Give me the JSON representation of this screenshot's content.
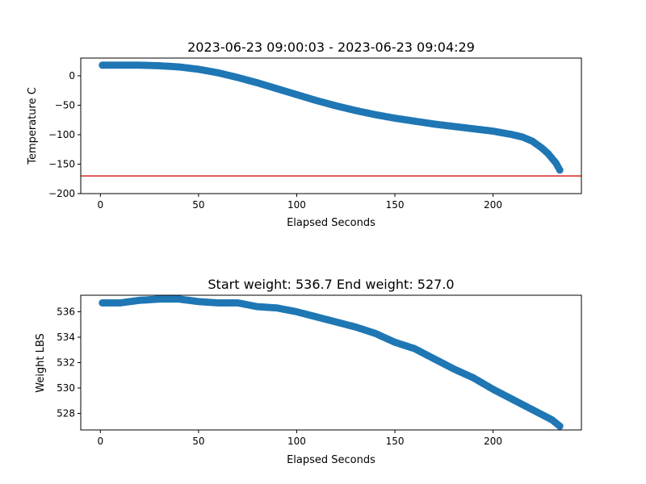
{
  "chart_data": [
    {
      "type": "scatter",
      "title": "2023-06-23 09:00:03 - 2023-06-23 09:04:29",
      "xlabel": "Elapsed Seconds",
      "ylabel": "Temperature C",
      "xlim": [
        -10,
        245
      ],
      "ylim": [
        -200,
        30
      ],
      "xticks": [
        0,
        50,
        100,
        150,
        200
      ],
      "yticks": [
        -200,
        -150,
        -100,
        -50,
        0
      ],
      "marker_color": "#1f77b4",
      "grid": false,
      "reference_line": {
        "y": -170,
        "color": "#d62728"
      },
      "x": [
        1,
        10,
        20,
        30,
        40,
        50,
        60,
        70,
        80,
        90,
        100,
        110,
        120,
        130,
        140,
        150,
        160,
        170,
        180,
        190,
        200,
        210,
        215,
        220,
        225,
        228,
        230,
        232,
        234
      ],
      "y": [
        18,
        18,
        18,
        17,
        15,
        11,
        5,
        -3,
        -12,
        -22,
        -32,
        -42,
        -51,
        -59,
        -66,
        -72,
        -77,
        -82,
        -86,
        -90,
        -94,
        -100,
        -104,
        -111,
        -123,
        -132,
        -140,
        -148,
        -160
      ]
    },
    {
      "type": "scatter",
      "title": "Start weight: 536.7 End weight: 527.0",
      "xlabel": "Elapsed Seconds",
      "ylabel": "Weight LBS",
      "xlim": [
        -10,
        245
      ],
      "ylim": [
        526.7,
        537.3
      ],
      "xticks": [
        0,
        50,
        100,
        150,
        200
      ],
      "yticks": [
        528,
        530,
        532,
        534,
        536
      ],
      "marker_color": "#1f77b4",
      "grid": false,
      "x": [
        1,
        10,
        20,
        30,
        40,
        50,
        60,
        70,
        80,
        90,
        100,
        110,
        120,
        130,
        140,
        150,
        160,
        170,
        180,
        190,
        200,
        210,
        220,
        230,
        234
      ],
      "y": [
        536.7,
        536.7,
        536.9,
        537.0,
        537.0,
        536.8,
        536.7,
        536.7,
        536.4,
        536.3,
        536.0,
        535.6,
        535.2,
        534.8,
        534.3,
        533.6,
        533.1,
        532.3,
        531.5,
        530.8,
        529.9,
        529.1,
        528.3,
        527.5,
        527.0
      ]
    }
  ]
}
